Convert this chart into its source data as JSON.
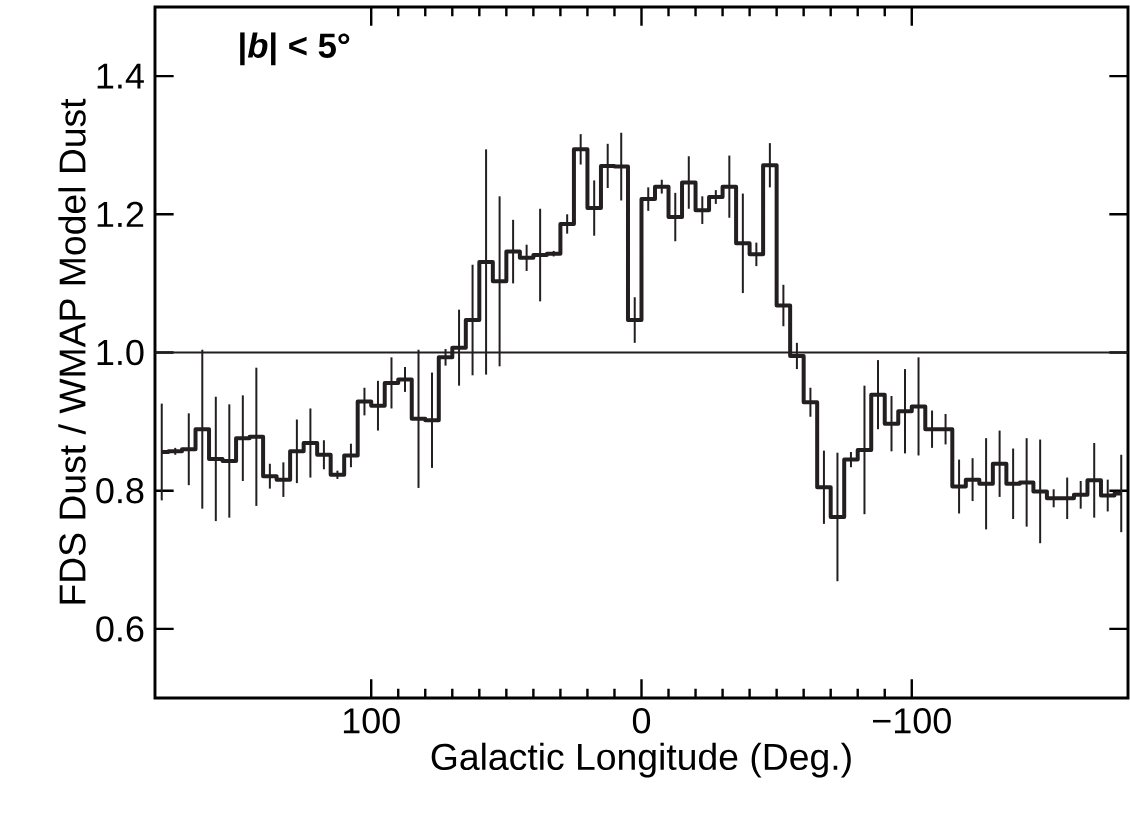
{
  "chart_data": {
    "type": "step",
    "xlabel": "Galactic Longitude (Deg.)",
    "ylabel": "FDS Dust / WMAP Model Dust",
    "annotations": [
      "**|*b*| < 5°**"
    ],
    "x": [
      177.5,
      172.5,
      167.5,
      162.5,
      157.5,
      152.5,
      147.5,
      142.5,
      137.5,
      132.5,
      127.5,
      122.5,
      117.5,
      112.5,
      107.5,
      102.5,
      97.5,
      92.5,
      87.5,
      82.5,
      77.5,
      72.5,
      67.5,
      62.5,
      57.5,
      52.5,
      47.5,
      42.5,
      37.5,
      32.5,
      27.5,
      22.5,
      17.5,
      12.5,
      7.5,
      2.5,
      -2.5,
      -7.5,
      -12.5,
      -17.5,
      -22.5,
      -27.5,
      -32.5,
      -37.5,
      -42.5,
      -47.5,
      -52.5,
      -57.5,
      -62.5,
      -67.5,
      -72.5,
      -77.5,
      -82.5,
      -87.5,
      -92.5,
      -97.5,
      -102.5,
      -107.5,
      -112.5,
      -117.5,
      -122.5,
      -127.5,
      -132.5,
      -137.5,
      -142.5,
      -147.5,
      -152.5,
      -157.5,
      -162.5,
      -167.5,
      -172.5,
      -177.5
    ],
    "values": [
      0.856,
      0.857,
      0.86,
      0.889,
      0.846,
      0.843,
      0.876,
      0.878,
      0.821,
      0.816,
      0.857,
      0.869,
      0.852,
      0.823,
      0.851,
      0.929,
      0.923,
      0.956,
      0.961,
      0.904,
      0.902,
      0.993,
      1.007,
      1.047,
      1.131,
      1.103,
      1.146,
      1.137,
      1.141,
      1.143,
      1.186,
      1.294,
      1.209,
      1.27,
      1.269,
      1.047,
      1.222,
      1.24,
      1.196,
      1.246,
      1.206,
      1.225,
      1.24,
      1.158,
      1.142,
      1.271,
      1.068,
      0.995,
      0.928,
      0.805,
      0.762,
      0.845,
      0.859,
      0.939,
      0.897,
      0.915,
      0.922,
      0.889,
      0.889,
      0.806,
      0.816,
      0.81,
      0.839,
      0.81,
      0.812,
      0.799,
      0.789,
      0.789,
      0.794,
      0.815,
      0.793,
      0.796
    ],
    "errors": [
      0.07,
      0.005,
      0.052,
      0.115,
      0.09,
      0.082,
      0.062,
      0.1,
      0.018,
      0.025,
      0.046,
      0.05,
      0.021,
      0.006,
      0.017,
      0.02,
      0.036,
      0.037,
      0.018,
      0.1,
      0.069,
      0.012,
      0.055,
      0.08,
      0.163,
      0.123,
      0.046,
      0.019,
      0.067,
      0.004,
      0.014,
      0.022,
      0.04,
      0.032,
      0.049,
      0.033,
      0.017,
      0.01,
      0.035,
      0.038,
      0.02,
      0.01,
      0.045,
      0.072,
      0.017,
      0.032,
      0.03,
      0.019,
      0.021,
      0.053,
      0.093,
      0.011,
      0.093,
      0.05,
      0.04,
      0.061,
      0.071,
      0.027,
      0.022,
      0.039,
      0.031,
      0.066,
      0.048,
      0.051,
      0.064,
      0.075,
      0.013,
      0.03,
      0.02,
      0.054,
      0.023,
      0.056
    ],
    "color": "#231f20",
    "xlim": [
      180,
      -180
    ],
    "ylim": [
      0.5,
      1.5
    ],
    "xticks": [
      100,
      0,
      {
        "value": -100,
        "label": "−100"
      }
    ],
    "yticks": [
      0.6,
      0.8,
      {
        "value": 1.0,
        "label": "1.0"
      },
      1.2,
      1.4
    ],
    "ref_lines": [
      {
        "axis": "y",
        "value": 1.0,
        "color": "#231f20"
      }
    ]
  }
}
